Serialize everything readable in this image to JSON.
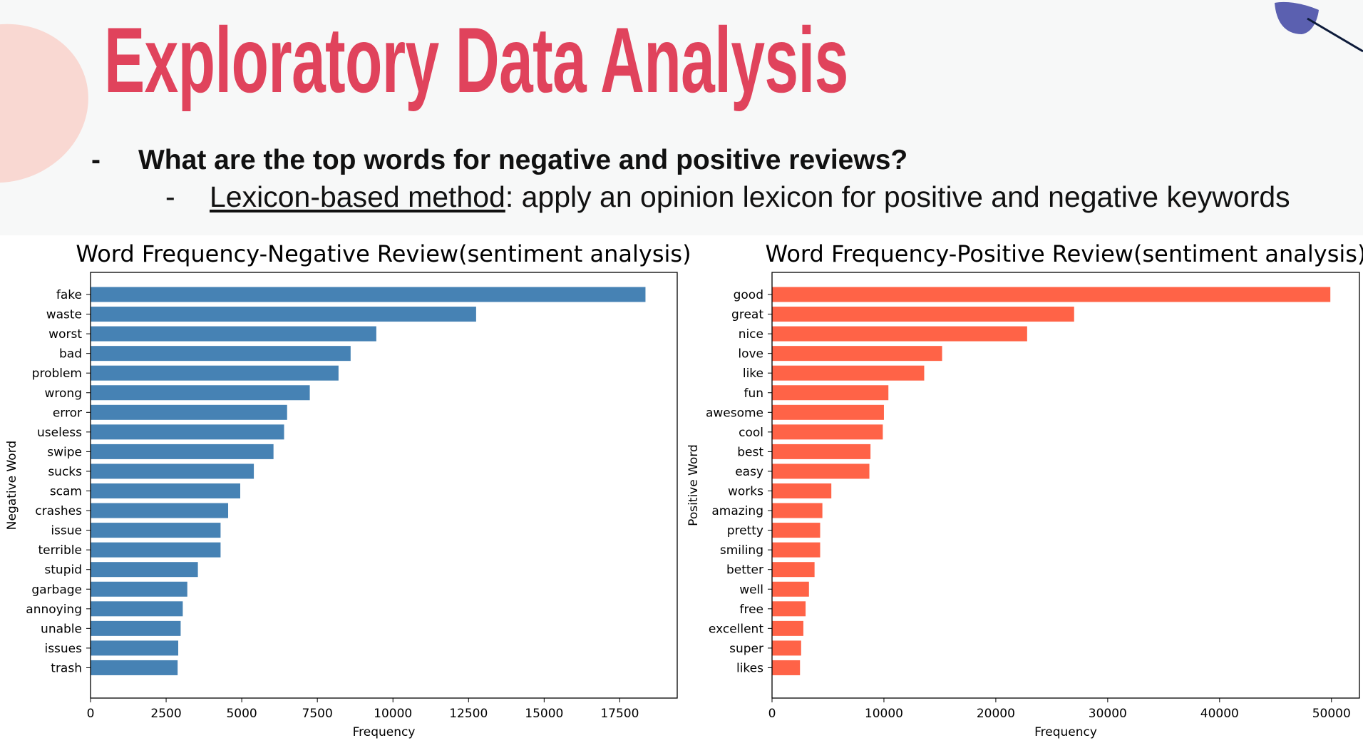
{
  "slide": {
    "title": "Exploratory Data Analysis",
    "bullet1": {
      "marker": "-",
      "text": "What are the top words for negative and positive reviews?"
    },
    "bullet2": {
      "marker": "-",
      "link_text": "Lexicon-based method",
      "text": ": apply an opinion lexicon for positive and negative keywords"
    }
  },
  "colors": {
    "title": "#e0435c",
    "negative_bar": "#4682b4",
    "positive_bar": "#ff6347",
    "blob": "#f9d8d2",
    "leaf": "#5b60b0"
  },
  "chart_data": [
    {
      "type": "bar",
      "orientation": "horizontal",
      "title": "Word Frequency-Negative Review(sentiment analysis)",
      "xlabel": "Frequency",
      "ylabel": "Negative Word",
      "xlim": [
        0,
        19400
      ],
      "xticks": [
        0,
        2500,
        5000,
        7500,
        10000,
        12500,
        15000,
        17500
      ],
      "categories": [
        "fake",
        "waste",
        "worst",
        "bad",
        "problem",
        "wrong",
        "error",
        "useless",
        "swipe",
        "sucks",
        "scam",
        "crashes",
        "issue",
        "terrible",
        "stupid",
        "garbage",
        "annoying",
        "unable",
        "issues",
        "trash"
      ],
      "values": [
        18350,
        12750,
        9450,
        8600,
        8200,
        7250,
        6500,
        6400,
        6050,
        5400,
        4950,
        4550,
        4300,
        4300,
        3550,
        3200,
        3050,
        2980,
        2900,
        2880
      ],
      "color": "#4682b4"
    },
    {
      "type": "bar",
      "orientation": "horizontal",
      "title": "Word Frequency-Positive Review(sentiment analysis)",
      "xlabel": "Frequency",
      "ylabel": "Positive Word",
      "xlim": [
        0,
        52500
      ],
      "xticks": [
        0,
        10000,
        20000,
        30000,
        40000,
        50000
      ],
      "categories": [
        "good",
        "great",
        "nice",
        "love",
        "like",
        "fun",
        "awesome",
        "cool",
        "best",
        "easy",
        "works",
        "amazing",
        "pretty",
        "smiling",
        "better",
        "well",
        "free",
        "excellent",
        "super",
        "likes"
      ],
      "values": [
        49900,
        27000,
        22800,
        15200,
        13600,
        10400,
        10000,
        9900,
        8800,
        8700,
        5300,
        4500,
        4300,
        4300,
        3800,
        3300,
        3000,
        2800,
        2600,
        2500
      ],
      "color": "#ff6347"
    }
  ]
}
